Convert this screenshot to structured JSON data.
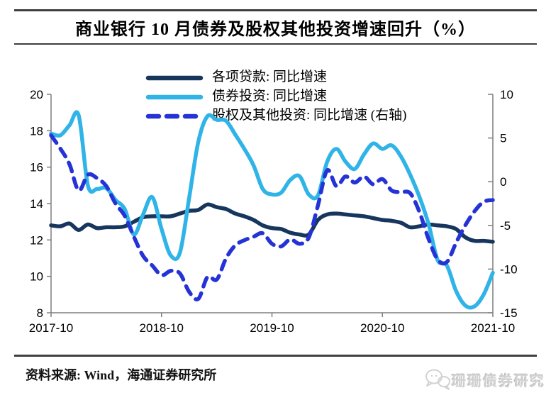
{
  "header": {
    "title": "商业银行 10 月债券及股权其他投资增速回升（%）"
  },
  "footer": {
    "source": "资料来源: Wind，海通证券研究所",
    "watermark": "珊珊债券研究",
    "watermark_icon": "chat-bubbles-icon"
  },
  "colors": {
    "loans": "#17365D",
    "bonds": "#30B4E8",
    "equity": "#2533D6",
    "axis": "#7f7f7f",
    "rule": "#3f3f3f",
    "watermark": "#d2d2d2"
  },
  "chart_data": {
    "type": "line",
    "title": "商业银行 10 月债券及股权其他投资增速回升（%）",
    "grid": false,
    "legend_position": "top-center",
    "x_tick_labels": [
      "2017-10",
      "2018-10",
      "2019-10",
      "2020-10",
      "2021-10"
    ],
    "axes": {
      "left": {
        "min": 8,
        "max": 20,
        "ticks": [
          20,
          18,
          16,
          14,
          12,
          10,
          8
        ]
      },
      "right": {
        "min": -15,
        "max": 10,
        "ticks": [
          10,
          5,
          0,
          -5,
          -10,
          -15
        ]
      }
    },
    "x": [
      "2017-10",
      "2017-11",
      "2017-12",
      "2018-01",
      "2018-02",
      "2018-03",
      "2018-04",
      "2018-05",
      "2018-06",
      "2018-07",
      "2018-08",
      "2018-09",
      "2018-10",
      "2018-11",
      "2018-12",
      "2019-01",
      "2019-02",
      "2019-03",
      "2019-04",
      "2019-05",
      "2019-06",
      "2019-07",
      "2019-08",
      "2019-09",
      "2019-10",
      "2019-11",
      "2019-12",
      "2020-01",
      "2020-02",
      "2020-03",
      "2020-04",
      "2020-05",
      "2020-06",
      "2020-07",
      "2020-08",
      "2020-09",
      "2020-10",
      "2020-11",
      "2020-12",
      "2021-01",
      "2021-02",
      "2021-03",
      "2021-04",
      "2021-05",
      "2021-06",
      "2021-07",
      "2021-08",
      "2021-09",
      "2021-10"
    ],
    "series": [
      {
        "name": "各项贷款: 同比增速",
        "axis": "left",
        "style": "solid",
        "color": "#17365D",
        "values": [
          12.8,
          12.75,
          12.9,
          12.55,
          12.85,
          12.65,
          12.7,
          12.7,
          12.75,
          13.0,
          13.25,
          13.3,
          13.3,
          13.3,
          13.45,
          13.6,
          13.65,
          13.95,
          13.8,
          13.7,
          13.45,
          13.3,
          13.1,
          12.8,
          12.65,
          12.6,
          12.4,
          12.3,
          12.3,
          13.1,
          13.4,
          13.45,
          13.4,
          13.35,
          13.3,
          13.2,
          13.1,
          13.05,
          12.95,
          12.7,
          12.75,
          12.85,
          12.8,
          12.75,
          12.6,
          12.15,
          11.95,
          11.95,
          11.9
        ]
      },
      {
        "name": "债券投资: 同比增速",
        "axis": "left",
        "style": "solid",
        "color": "#30B4E8",
        "values": [
          17.85,
          17.75,
          18.3,
          18.85,
          15.0,
          14.8,
          14.85,
          14.2,
          13.7,
          12.3,
          13.4,
          14.35,
          12.6,
          11.15,
          11.3,
          14.3,
          17.4,
          18.8,
          18.6,
          18.55,
          17.8,
          17.0,
          16.1,
          14.8,
          14.5,
          14.6,
          15.3,
          15.5,
          14.5,
          14.45,
          16.3,
          17.0,
          16.3,
          15.9,
          16.7,
          17.3,
          17.0,
          17.2,
          16.6,
          15.6,
          14.4,
          12.9,
          10.9,
          10.6,
          9.2,
          8.4,
          8.35,
          9.0,
          10.2
        ]
      },
      {
        "name": "股权及其他投资: 同比增速 (右轴)",
        "axis": "right",
        "style": "dashed",
        "color": "#2533D6",
        "values": [
          5.3,
          3.8,
          2.0,
          -1.0,
          0.8,
          0.4,
          -0.5,
          -2.5,
          -3.9,
          -6.3,
          -8.5,
          -9.6,
          -10.7,
          -10.2,
          -10.5,
          -12.6,
          -13.4,
          -10.9,
          -11.2,
          -8.8,
          -7.3,
          -6.7,
          -6.3,
          -5.9,
          -7.1,
          -7.4,
          -6.6,
          -7.1,
          -6.4,
          -2.7,
          1.3,
          -0.5,
          0.6,
          -0.1,
          0.6,
          -0.3,
          0.3,
          -1.0,
          -1.2,
          -1.3,
          -3.4,
          -6.5,
          -8.9,
          -9.2,
          -7.0,
          -5.0,
          -3.4,
          -2.3,
          -2.1
        ]
      }
    ]
  }
}
